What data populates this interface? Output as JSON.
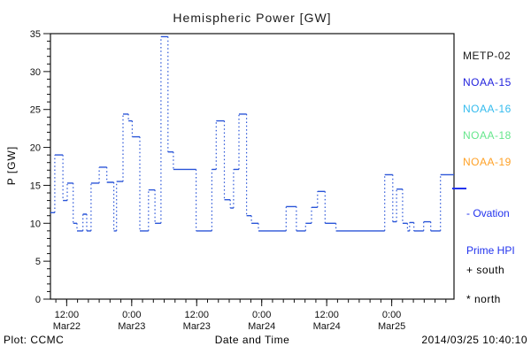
{
  "title": "Hemispheric Power [GW]",
  "legend": {
    "items": [
      {
        "label": "METP-02",
        "color": "#1a1a1a"
      },
      {
        "label": "NOAA-15",
        "color": "#2222dd"
      },
      {
        "label": "NOAA-16",
        "color": "#33bbee"
      },
      {
        "label": "NOAA-18",
        "color": "#66e68c"
      },
      {
        "label": "NOAA-19",
        "color": "#ffa126"
      }
    ]
  },
  "annotations": {
    "ovation_line1": "- Ovation",
    "ovation_line2": "Prime HPI",
    "ovation_color": "#2233ee",
    "south": "+ south",
    "north": "* north"
  },
  "footer": {
    "left": "Plot: CCMC",
    "center": "Date and Time",
    "right": "2014/03/25 10:40:10"
  },
  "chart_data": {
    "type": "line",
    "style": "steps-post",
    "title": "Hemispheric Power [GW]",
    "xlabel": "Date and Time",
    "ylabel": "P [GW]",
    "ylim": [
      0,
      35
    ],
    "y_major_ticks": [
      0,
      5,
      10,
      15,
      20,
      25,
      30,
      35
    ],
    "y_minor_step": 1,
    "x_hours_range": [
      0,
      74.5
    ],
    "x_minor_step_hours": 2,
    "x_minor_first_hour": 1,
    "x_major_ticks": [
      {
        "t": 3,
        "time": "12:00",
        "date": "Mar22"
      },
      {
        "t": 15,
        "time": "0:00",
        "date": "Mar23"
      },
      {
        "t": 27,
        "time": "12:00",
        "date": "Mar23"
      },
      {
        "t": 39,
        "time": "0:00",
        "date": "Mar24"
      },
      {
        "t": 51,
        "time": "12:00",
        "date": "Mar24"
      },
      {
        "t": 63,
        "time": "0:00",
        "date": "Mar25"
      }
    ],
    "line_color": "#2a55d8",
    "series_name": "Ovation Prime HPI",
    "legend_satellites": [
      "METP-02",
      "NOAA-15",
      "NOAA-16",
      "NOAA-18",
      "NOAA-19"
    ],
    "steps_hours_gw": [
      [
        0,
        11.4
      ],
      [
        0.8,
        19
      ],
      [
        2.3,
        13
      ],
      [
        3.1,
        15.3
      ],
      [
        4.2,
        10
      ],
      [
        4.9,
        9
      ],
      [
        6,
        11.2
      ],
      [
        6.7,
        9
      ],
      [
        7.5,
        15.3
      ],
      [
        9,
        17.4
      ],
      [
        10.4,
        15.4
      ],
      [
        11.7,
        9
      ],
      [
        12.2,
        15.5
      ],
      [
        13.4,
        24.4
      ],
      [
        14.4,
        23.5
      ],
      [
        15.1,
        21.4
      ],
      [
        16.5,
        9
      ],
      [
        18.1,
        14.4
      ],
      [
        19.3,
        10
      ],
      [
        20.4,
        34.6
      ],
      [
        21.7,
        19.4
      ],
      [
        22.7,
        17.1
      ],
      [
        26.9,
        9
      ],
      [
        29.8,
        17.1
      ],
      [
        30.6,
        23.5
      ],
      [
        32.1,
        13.1
      ],
      [
        33.2,
        12
      ],
      [
        33.8,
        17.1
      ],
      [
        34.8,
        24.4
      ],
      [
        36.2,
        11
      ],
      [
        37.1,
        10
      ],
      [
        38.4,
        9
      ],
      [
        43.5,
        12.2
      ],
      [
        45.4,
        9
      ],
      [
        47.1,
        10
      ],
      [
        48.2,
        12.1
      ],
      [
        49.3,
        14.2
      ],
      [
        50.7,
        10
      ],
      [
        52.7,
        9
      ],
      [
        61.7,
        16.4
      ],
      [
        63.2,
        10.2
      ],
      [
        63.9,
        14.5
      ],
      [
        65,
        10
      ],
      [
        65.9,
        9
      ],
      [
        66.3,
        10.1
      ],
      [
        67.1,
        9
      ],
      [
        68.9,
        10.2
      ],
      [
        70.2,
        9
      ],
      [
        72,
        16.4
      ]
    ]
  }
}
